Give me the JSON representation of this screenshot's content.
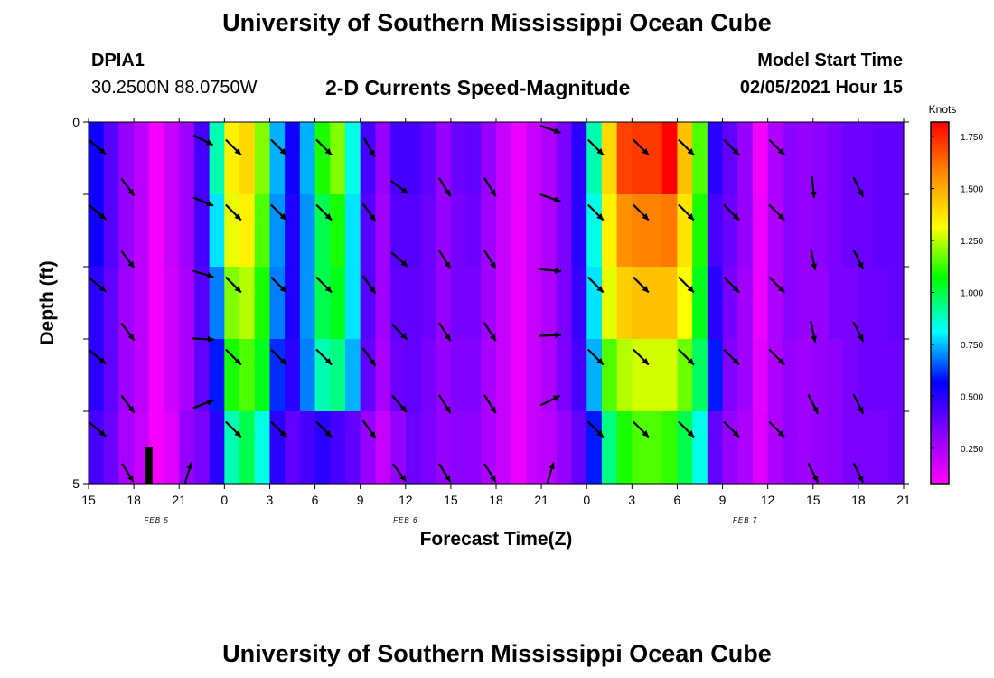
{
  "header": {
    "title": "University of Southern Mississippi Ocean Cube",
    "station": "DPIA1",
    "coordinates": "30.2500N 88.0750W",
    "subtitle": "2-D Currents Speed-Magnitude",
    "model_start_label": "Model Start Time",
    "model_start_value": "02/05/2021 Hour 15"
  },
  "footer": {
    "title": "University of Southern Mississippi Ocean Cube"
  },
  "chart_data": {
    "type": "heatmap",
    "xlabel": "Forecast Time(Z)",
    "ylabel": "Depth (ft)",
    "x_tick_labels": [
      "15",
      "18",
      "21",
      "0",
      "3",
      "6",
      "9",
      "12",
      "15",
      "18",
      "21",
      "0",
      "3",
      "6",
      "9",
      "12",
      "15",
      "18",
      "21"
    ],
    "date_labels": [
      {
        "text": "FEB 5",
        "hour": 4.5
      },
      {
        "text": "FEB 6",
        "hour": 21
      },
      {
        "text": "FEB 7",
        "hour": 43.5
      }
    ],
    "x_range_hours": [
      0,
      54
    ],
    "y_tick_labels": [
      "0",
      "5"
    ],
    "y_range_ft": [
      0,
      5
    ],
    "colorbar": {
      "label": "Knots",
      "min": 0.08,
      "max": 1.82,
      "ticks": [
        "0.250",
        "0.500",
        "0.750",
        "1.000",
        "1.250",
        "1.500",
        "1.750"
      ],
      "tick_values": [
        0.25,
        0.5,
        0.75,
        1.0,
        1.25,
        1.5,
        1.75
      ],
      "colors": [
        "#ff00ff",
        "#8800ff",
        "#0000ff",
        "#00ffff",
        "#00ff00",
        "#ffff00",
        "#ff8800",
        "#ff0000"
      ]
    },
    "levels": 5,
    "columns": [
      {
        "h": 0,
        "v": [
          0.55,
          0.55,
          0.5,
          0.5,
          0.45
        ]
      },
      {
        "h": 1,
        "v": [
          0.42,
          0.42,
          0.4,
          0.4,
          0.38
        ]
      },
      {
        "h": 2,
        "v": [
          0.3,
          0.3,
          0.28,
          0.28,
          0.26
        ]
      },
      {
        "h": 3,
        "v": [
          0.22,
          0.22,
          0.22,
          0.22,
          0.2
        ]
      },
      {
        "h": 4,
        "v": [
          0.1,
          0.1,
          0.1,
          0.1,
          0.1
        ]
      },
      {
        "h": 5,
        "v": [
          0.2,
          0.2,
          0.18,
          0.18,
          0.15
        ]
      },
      {
        "h": 6,
        "v": [
          0.28,
          0.28,
          0.26,
          0.26,
          0.3
        ]
      },
      {
        "h": 7,
        "v": [
          0.45,
          0.45,
          0.42,
          0.4,
          0.35
        ]
      },
      {
        "h": 8,
        "v": [
          0.9,
          0.8,
          0.7,
          0.6,
          0.5
        ]
      },
      {
        "h": 9,
        "v": [
          1.35,
          1.3,
          1.2,
          1.1,
          0.9
        ]
      },
      {
        "h": 10,
        "v": [
          1.4,
          1.35,
          1.25,
          1.15,
          1.0
        ]
      },
      {
        "h": 11,
        "v": [
          1.2,
          1.15,
          1.1,
          1.05,
          0.85
        ]
      },
      {
        "h": 12,
        "v": [
          0.75,
          0.72,
          0.7,
          0.62,
          0.5
        ]
      },
      {
        "h": 13,
        "v": [
          0.55,
          0.52,
          0.52,
          0.5,
          0.4
        ]
      },
      {
        "h": 14,
        "v": [
          0.75,
          0.72,
          0.72,
          0.7,
          0.45
        ]
      },
      {
        "h": 15,
        "v": [
          1.1,
          1.0,
          1.0,
          0.9,
          0.5
        ]
      },
      {
        "h": 16,
        "v": [
          1.2,
          1.1,
          1.05,
          0.95,
          0.45
        ]
      },
      {
        "h": 17,
        "v": [
          0.85,
          0.8,
          0.8,
          0.75,
          0.4
        ]
      },
      {
        "h": 18,
        "v": [
          0.45,
          0.42,
          0.42,
          0.4,
          0.3
        ]
      },
      {
        "h": 19,
        "v": [
          0.3,
          0.28,
          0.28,
          0.26,
          0.2
        ]
      },
      {
        "h": 20,
        "v": [
          0.45,
          0.42,
          0.4,
          0.38,
          0.3
        ]
      },
      {
        "h": 21,
        "v": [
          0.45,
          0.42,
          0.4,
          0.4,
          0.38
        ]
      },
      {
        "h": 22,
        "v": [
          0.4,
          0.38,
          0.38,
          0.36,
          0.35
        ]
      },
      {
        "h": 23,
        "v": [
          0.3,
          0.3,
          0.3,
          0.3,
          0.3
        ]
      },
      {
        "h": 24,
        "v": [
          0.38,
          0.36,
          0.36,
          0.34,
          0.32
        ]
      },
      {
        "h": 25,
        "v": [
          0.4,
          0.38,
          0.36,
          0.34,
          0.32
        ]
      },
      {
        "h": 26,
        "v": [
          0.3,
          0.28,
          0.28,
          0.26,
          0.25
        ]
      },
      {
        "h": 27,
        "v": [
          0.2,
          0.2,
          0.2,
          0.2,
          0.2
        ]
      },
      {
        "h": 28,
        "v": [
          0.12,
          0.12,
          0.12,
          0.12,
          0.12
        ]
      },
      {
        "h": 29,
        "v": [
          0.2,
          0.2,
          0.2,
          0.2,
          0.2
        ]
      },
      {
        "h": 30,
        "v": [
          0.25,
          0.25,
          0.25,
          0.25,
          0.22
        ]
      },
      {
        "h": 31,
        "v": [
          0.35,
          0.35,
          0.35,
          0.35,
          0.3
        ]
      },
      {
        "h": 32,
        "v": [
          0.5,
          0.5,
          0.48,
          0.45,
          0.4
        ]
      },
      {
        "h": 33,
        "v": [
          0.9,
          0.85,
          0.8,
          0.75,
          0.6
        ]
      },
      {
        "h": 34,
        "v": [
          1.4,
          1.35,
          1.3,
          1.15,
          0.95
        ]
      },
      {
        "h": 35,
        "v": [
          1.7,
          1.55,
          1.42,
          1.25,
          1.1
        ]
      },
      {
        "h": 36,
        "v": [
          1.72,
          1.58,
          1.45,
          1.28,
          1.15
        ]
      },
      {
        "h": 37,
        "v": [
          1.72,
          1.58,
          1.45,
          1.28,
          1.15
        ]
      },
      {
        "h": 38,
        "v": [
          1.82,
          1.6,
          1.45,
          1.28,
          1.12
        ]
      },
      {
        "h": 39,
        "v": [
          1.45,
          1.38,
          1.32,
          1.18,
          1.0
        ]
      },
      {
        "h": 40,
        "v": [
          1.15,
          1.1,
          1.05,
          0.98,
          0.85
        ]
      },
      {
        "h": 41,
        "v": [
          0.5,
          0.45,
          0.5,
          0.6,
          0.4
        ]
      },
      {
        "h": 42,
        "v": [
          0.4,
          0.38,
          0.36,
          0.34,
          0.3
        ]
      },
      {
        "h": 43,
        "v": [
          0.3,
          0.3,
          0.28,
          0.28,
          0.25
        ]
      },
      {
        "h": 44,
        "v": [
          0.1,
          0.12,
          0.12,
          0.14,
          0.15
        ]
      },
      {
        "h": 45,
        "v": [
          0.25,
          0.25,
          0.25,
          0.25,
          0.25
        ]
      },
      {
        "h": 46,
        "v": [
          0.32,
          0.32,
          0.32,
          0.3,
          0.3
        ]
      },
      {
        "h": 47,
        "v": [
          0.3,
          0.3,
          0.3,
          0.28,
          0.28
        ]
      },
      {
        "h": 48,
        "v": [
          0.32,
          0.32,
          0.3,
          0.3,
          0.3
        ]
      },
      {
        "h": 49,
        "v": [
          0.35,
          0.35,
          0.35,
          0.32,
          0.32
        ]
      },
      {
        "h": 50,
        "v": [
          0.38,
          0.38,
          0.35,
          0.35,
          0.35
        ]
      },
      {
        "h": 51,
        "v": [
          0.38,
          0.38,
          0.38,
          0.38,
          0.35
        ]
      },
      {
        "h": 52,
        "v": [
          0.4,
          0.4,
          0.38,
          0.38,
          0.35
        ]
      },
      {
        "h": 53,
        "v": [
          0.4,
          0.4,
          0.4,
          0.38,
          0.38
        ]
      }
    ],
    "vectors": [
      {
        "h": 0.6,
        "d": 0.35,
        "dx": 0.6,
        "dy": 0.5
      },
      {
        "h": 0.6,
        "d": 1.25,
        "dx": 0.6,
        "dy": 0.5
      },
      {
        "h": 0.6,
        "d": 2.25,
        "dx": 0.6,
        "dy": 0.5
      },
      {
        "h": 0.6,
        "d": 3.25,
        "dx": 0.6,
        "dy": 0.5
      },
      {
        "h": 0.6,
        "d": 4.25,
        "dx": 0.6,
        "dy": 0.5
      },
      {
        "h": 2.6,
        "d": 0.9,
        "dx": 0.6,
        "dy": 0.8
      },
      {
        "h": 2.6,
        "d": 1.9,
        "dx": 0.6,
        "dy": 0.8
      },
      {
        "h": 2.6,
        "d": 2.9,
        "dx": 0.6,
        "dy": 0.8
      },
      {
        "h": 2.6,
        "d": 3.9,
        "dx": 0.6,
        "dy": 0.8
      },
      {
        "h": 2.6,
        "d": 4.85,
        "dx": 0.5,
        "dy": 0.8
      },
      {
        "h": 7.6,
        "d": 0.25,
        "dx": 1.0,
        "dy": 0.5
      },
      {
        "h": 7.6,
        "d": 1.1,
        "dx": 1.0,
        "dy": 0.4
      },
      {
        "h": 7.6,
        "d": 2.1,
        "dx": 1.0,
        "dy": 0.3
      },
      {
        "h": 7.6,
        "d": 3.0,
        "dx": 1.0,
        "dy": 0.05
      },
      {
        "h": 7.6,
        "d": 3.9,
        "dx": 1.0,
        "dy": -0.4
      },
      {
        "h": 6.6,
        "d": 4.85,
        "dx": 0.3,
        "dy": -1.0
      },
      {
        "h": 9.6,
        "d": 0.35,
        "dx": 0.6,
        "dy": 0.6
      },
      {
        "h": 9.6,
        "d": 1.25,
        "dx": 0.6,
        "dy": 0.6
      },
      {
        "h": 9.6,
        "d": 2.25,
        "dx": 0.6,
        "dy": 0.6
      },
      {
        "h": 9.6,
        "d": 3.25,
        "dx": 0.6,
        "dy": 0.6
      },
      {
        "h": 9.6,
        "d": 4.25,
        "dx": 0.6,
        "dy": 0.6
      },
      {
        "h": 12.6,
        "d": 0.35,
        "dx": 0.6,
        "dy": 0.6
      },
      {
        "h": 12.6,
        "d": 1.25,
        "dx": 0.6,
        "dy": 0.6
      },
      {
        "h": 12.6,
        "d": 2.25,
        "dx": 0.6,
        "dy": 0.6
      },
      {
        "h": 12.6,
        "d": 3.25,
        "dx": 0.6,
        "dy": 0.6
      },
      {
        "h": 12.6,
        "d": 4.25,
        "dx": 0.6,
        "dy": 0.6
      },
      {
        "h": 15.6,
        "d": 0.35,
        "dx": 0.6,
        "dy": 0.6
      },
      {
        "h": 15.6,
        "d": 1.25,
        "dx": 0.6,
        "dy": 0.6
      },
      {
        "h": 15.6,
        "d": 2.25,
        "dx": 0.6,
        "dy": 0.6
      },
      {
        "h": 15.6,
        "d": 3.25,
        "dx": 0.6,
        "dy": 0.6
      },
      {
        "h": 15.6,
        "d": 4.25,
        "dx": 0.6,
        "dy": 0.6
      },
      {
        "h": 18.6,
        "d": 0.35,
        "dx": 0.4,
        "dy": 0.7
      },
      {
        "h": 18.6,
        "d": 1.25,
        "dx": 0.5,
        "dy": 0.7
      },
      {
        "h": 18.6,
        "d": 2.25,
        "dx": 0.5,
        "dy": 0.7
      },
      {
        "h": 18.6,
        "d": 3.25,
        "dx": 0.5,
        "dy": 0.7
      },
      {
        "h": 18.6,
        "d": 4.25,
        "dx": 0.5,
        "dy": 0.7
      },
      {
        "h": 20.6,
        "d": 0.9,
        "dx": 0.8,
        "dy": 0.6
      },
      {
        "h": 20.6,
        "d": 1.9,
        "dx": 0.8,
        "dy": 0.7
      },
      {
        "h": 20.6,
        "d": 2.9,
        "dx": 0.7,
        "dy": 0.7
      },
      {
        "h": 20.6,
        "d": 3.9,
        "dx": 0.6,
        "dy": 0.7
      },
      {
        "h": 20.6,
        "d": 4.85,
        "dx": 0.6,
        "dy": 0.8
      },
      {
        "h": 23.6,
        "d": 0.9,
        "dx": 0.5,
        "dy": 0.8
      },
      {
        "h": 23.6,
        "d": 1.9,
        "dx": 0.5,
        "dy": 0.8
      },
      {
        "h": 23.6,
        "d": 2.9,
        "dx": 0.5,
        "dy": 0.8
      },
      {
        "h": 23.6,
        "d": 3.9,
        "dx": 0.5,
        "dy": 0.8
      },
      {
        "h": 23.6,
        "d": 4.85,
        "dx": 0.5,
        "dy": 0.8
      },
      {
        "h": 26.6,
        "d": 0.9,
        "dx": 0.5,
        "dy": 0.8
      },
      {
        "h": 26.6,
        "d": 1.9,
        "dx": 0.5,
        "dy": 0.8
      },
      {
        "h": 26.6,
        "d": 2.9,
        "dx": 0.5,
        "dy": 0.8
      },
      {
        "h": 26.6,
        "d": 3.9,
        "dx": 0.5,
        "dy": 0.8
      },
      {
        "h": 26.6,
        "d": 4.85,
        "dx": 0.5,
        "dy": 0.8
      },
      {
        "h": 30.6,
        "d": 0.1,
        "dx": 1.0,
        "dy": 0.35
      },
      {
        "h": 30.6,
        "d": 1.05,
        "dx": 1.0,
        "dy": 0.35
      },
      {
        "h": 30.6,
        "d": 2.05,
        "dx": 1.0,
        "dy": 0.1
      },
      {
        "h": 30.6,
        "d": 2.95,
        "dx": 1.0,
        "dy": -0.05
      },
      {
        "h": 30.6,
        "d": 3.85,
        "dx": 1.0,
        "dy": -0.5
      },
      {
        "h": 30.6,
        "d": 4.85,
        "dx": 0.3,
        "dy": -1.0
      },
      {
        "h": 33.6,
        "d": 0.35,
        "dx": 0.6,
        "dy": 0.6
      },
      {
        "h": 33.6,
        "d": 1.25,
        "dx": 0.6,
        "dy": 0.6
      },
      {
        "h": 33.6,
        "d": 2.25,
        "dx": 0.6,
        "dy": 0.6
      },
      {
        "h": 33.6,
        "d": 3.25,
        "dx": 0.6,
        "dy": 0.6
      },
      {
        "h": 33.6,
        "d": 4.25,
        "dx": 0.6,
        "dy": 0.6
      },
      {
        "h": 36.6,
        "d": 0.35,
        "dx": 0.6,
        "dy": 0.6
      },
      {
        "h": 36.6,
        "d": 1.25,
        "dx": 0.6,
        "dy": 0.6
      },
      {
        "h": 36.6,
        "d": 2.25,
        "dx": 0.6,
        "dy": 0.6
      },
      {
        "h": 36.6,
        "d": 3.25,
        "dx": 0.6,
        "dy": 0.6
      },
      {
        "h": 36.6,
        "d": 4.25,
        "dx": 0.6,
        "dy": 0.6
      },
      {
        "h": 39.6,
        "d": 0.35,
        "dx": 0.6,
        "dy": 0.6
      },
      {
        "h": 39.6,
        "d": 1.25,
        "dx": 0.6,
        "dy": 0.6
      },
      {
        "h": 39.6,
        "d": 2.25,
        "dx": 0.6,
        "dy": 0.6
      },
      {
        "h": 39.6,
        "d": 3.25,
        "dx": 0.6,
        "dy": 0.6
      },
      {
        "h": 39.6,
        "d": 4.25,
        "dx": 0.6,
        "dy": 0.6
      },
      {
        "h": 42.6,
        "d": 0.35,
        "dx": 0.6,
        "dy": 0.6
      },
      {
        "h": 42.6,
        "d": 1.25,
        "dx": 0.6,
        "dy": 0.6
      },
      {
        "h": 42.6,
        "d": 2.25,
        "dx": 0.6,
        "dy": 0.6
      },
      {
        "h": 42.6,
        "d": 3.25,
        "dx": 0.6,
        "dy": 0.6
      },
      {
        "h": 42.6,
        "d": 4.25,
        "dx": 0.6,
        "dy": 0.6
      },
      {
        "h": 45.6,
        "d": 0.35,
        "dx": 0.6,
        "dy": 0.6
      },
      {
        "h": 45.6,
        "d": 1.25,
        "dx": 0.6,
        "dy": 0.6
      },
      {
        "h": 45.6,
        "d": 2.25,
        "dx": 0.6,
        "dy": 0.6
      },
      {
        "h": 45.6,
        "d": 3.25,
        "dx": 0.6,
        "dy": 0.6
      },
      {
        "h": 45.6,
        "d": 4.25,
        "dx": 0.6,
        "dy": 0.6
      },
      {
        "h": 48.0,
        "d": 0.9,
        "dx": 0.1,
        "dy": 1.0
      },
      {
        "h": 48.0,
        "d": 1.9,
        "dx": 0.2,
        "dy": 1.0
      },
      {
        "h": 48.0,
        "d": 2.9,
        "dx": 0.2,
        "dy": 1.0
      },
      {
        "h": 48.0,
        "d": 3.9,
        "dx": 0.4,
        "dy": 0.8
      },
      {
        "h": 48.0,
        "d": 4.85,
        "dx": 0.4,
        "dy": 0.8
      },
      {
        "h": 51.0,
        "d": 0.9,
        "dx": 0.4,
        "dy": 0.8
      },
      {
        "h": 51.0,
        "d": 1.9,
        "dx": 0.4,
        "dy": 0.8
      },
      {
        "h": 51.0,
        "d": 2.9,
        "dx": 0.4,
        "dy": 0.8
      },
      {
        "h": 51.0,
        "d": 3.9,
        "dx": 0.4,
        "dy": 0.8
      },
      {
        "h": 51.0,
        "d": 4.85,
        "dx": 0.4,
        "dy": 0.8
      }
    ],
    "marker": {
      "h": 4.0,
      "d_top": 4.5,
      "d_bottom": 5.0,
      "color": "#000000"
    }
  }
}
